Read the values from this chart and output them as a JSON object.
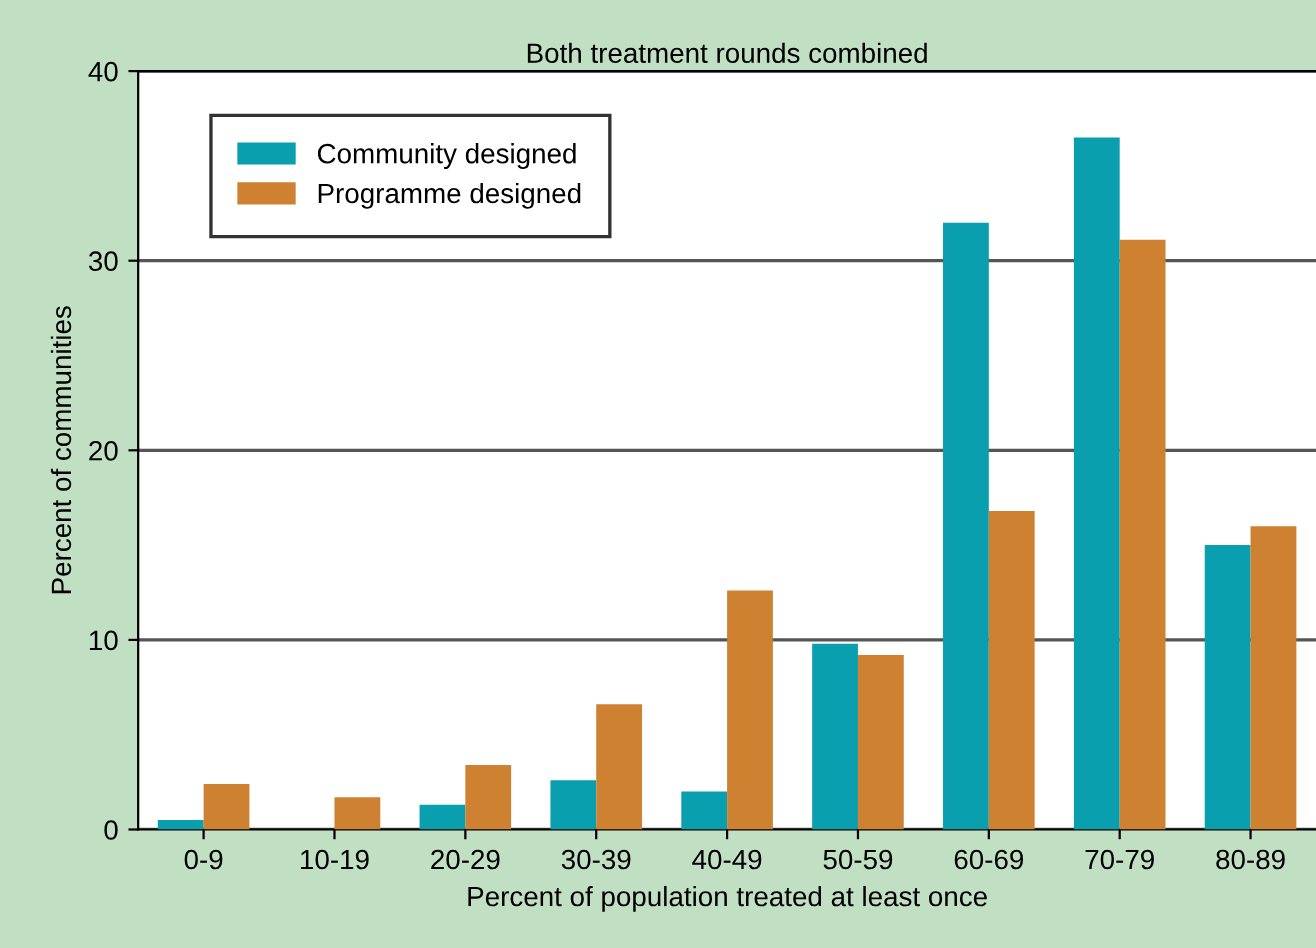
{
  "chart_data": {
    "type": "bar",
    "title": "Both treatment rounds combined",
    "xlabel": "Percent of population treated at least once",
    "ylabel": "Percent of communities",
    "categories": [
      "0-9",
      "10-19",
      "20-29",
      "30-39",
      "40-49",
      "50-59",
      "60-69",
      "70-79",
      "80-89"
    ],
    "series": [
      {
        "name": "Community designed",
        "color": "#0a9fae",
        "values": [
          0.5,
          0,
          1.3,
          2.6,
          2.0,
          9.8,
          32.0,
          36.5,
          15.0
        ]
      },
      {
        "name": "Programme designed",
        "color": "#cf8132",
        "values": [
          2.4,
          1.7,
          3.4,
          6.6,
          12.6,
          9.2,
          16.8,
          31.1,
          16.0
        ]
      }
    ],
    "ylim": [
      0,
      40
    ],
    "yticks": [
      0,
      10,
      20,
      30,
      40
    ],
    "grid": "y",
    "legend": "top left"
  }
}
